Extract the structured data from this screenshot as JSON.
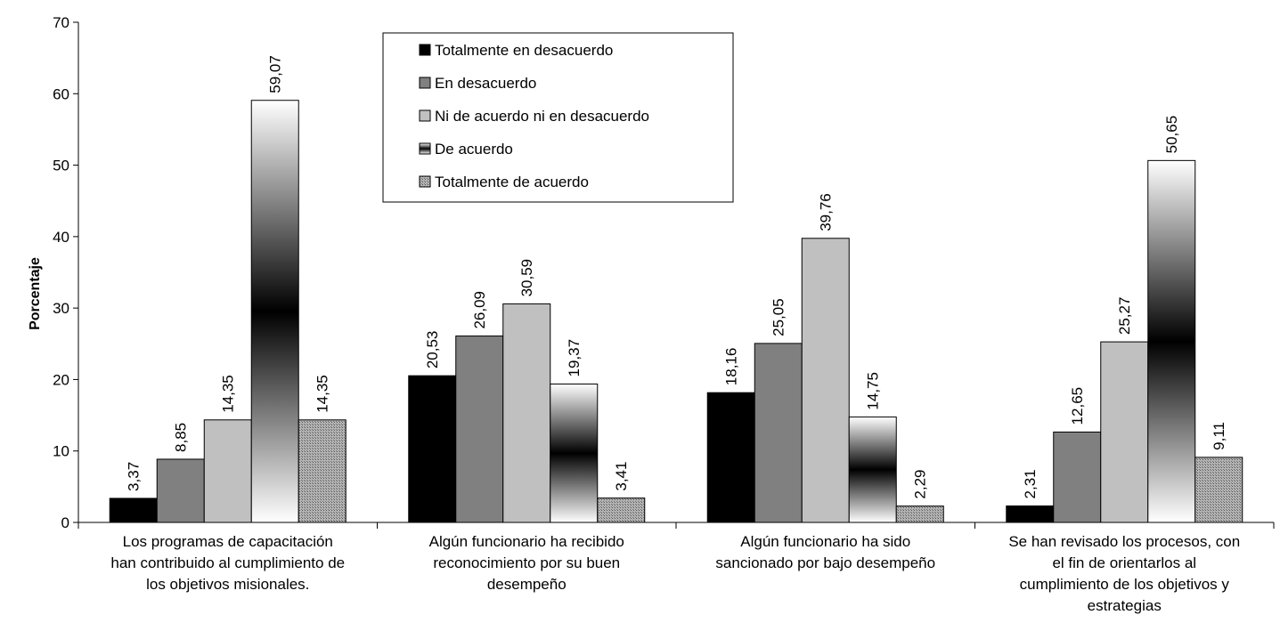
{
  "chart_data": {
    "type": "bar",
    "ylabel": "Porcentaje",
    "ylim": [
      0,
      70
    ],
    "yticks": [
      0,
      10,
      20,
      30,
      40,
      50,
      60,
      70
    ],
    "grid": false,
    "legend_position": "top-center",
    "categories": [
      [
        "Los programas de  capacitación",
        "han contribuido al cumplimiento de",
        "los objetivos misionales."
      ],
      [
        "Algún funcionario ha recibido",
        "reconocimiento por su buen",
        "desempeño"
      ],
      [
        "Algún funcionario  ha sido",
        "sancionado por bajo desempeño"
      ],
      [
        "Se han revisado los procesos, con",
        "el fin de orientarlos al",
        "cumplimiento de los objetivos y",
        "estrategias"
      ]
    ],
    "series": [
      {
        "name": "Totalmente en desacuerdo",
        "fill": "black",
        "values": [
          3.37,
          20.53,
          18.16,
          2.31
        ],
        "labels": [
          "3,37",
          "20,53",
          "18,16",
          "2,31"
        ]
      },
      {
        "name": "En desacuerdo",
        "fill": "gray",
        "values": [
          8.85,
          26.09,
          25.05,
          12.65
        ],
        "labels": [
          "8,85",
          "26,09",
          "25,05",
          "12,65"
        ]
      },
      {
        "name": "Ni de acuerdo ni en desacuerdo",
        "fill": "lightgray",
        "values": [
          14.35,
          30.59,
          39.76,
          25.27
        ],
        "labels": [
          "14,35",
          "30,59",
          "39,76",
          "25,27"
        ]
      },
      {
        "name": "De acuerdo",
        "fill": "gradient",
        "values": [
          59.07,
          19.37,
          14.75,
          50.65
        ],
        "labels": [
          "59,07",
          "19,37",
          "14,75",
          "50,65"
        ]
      },
      {
        "name": "Totalmente de acuerdo",
        "fill": "pattern",
        "values": [
          14.35,
          3.41,
          2.29,
          9.11
        ],
        "labels": [
          "14,35",
          "3,41",
          "2,29",
          "9,11"
        ]
      }
    ],
    "colors": {
      "black": "#000000",
      "gray": "#808080",
      "lightgray": "#c0c0c0",
      "pattern_base": "#a0a0a0"
    }
  }
}
